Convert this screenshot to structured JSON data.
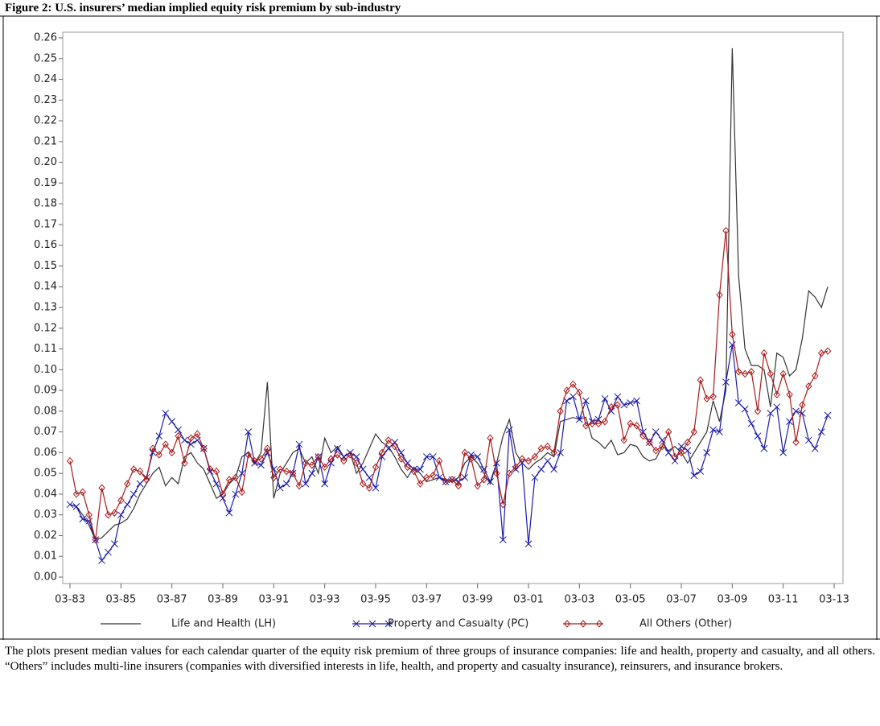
{
  "figure_title": "Figure 2: U.S. insurers’ median implied equity risk premium by sub-industry",
  "caption": "The plots present median values for each calendar quarter of the equity risk premium of three groups of insurance companies: life and health, property and casualty, and all others. “Others” includes multi-line insurers (companies with diversified interests in life, health, and property and casualty insurance), reinsurers, and insurance brokers.",
  "chart_data": {
    "type": "line",
    "legend": "bottom",
    "grid": false,
    "x": [
      "03-83",
      "06-83",
      "09-83",
      "12-83",
      "03-84",
      "06-84",
      "09-84",
      "12-84",
      "03-85",
      "06-85",
      "09-85",
      "12-85",
      "03-86",
      "06-86",
      "09-86",
      "12-86",
      "03-87",
      "06-87",
      "09-87",
      "12-87",
      "03-88",
      "06-88",
      "09-88",
      "12-88",
      "03-89",
      "06-89",
      "09-89",
      "12-89",
      "03-90",
      "06-90",
      "09-90",
      "12-90",
      "03-91",
      "06-91",
      "09-91",
      "12-91",
      "03-92",
      "06-92",
      "09-92",
      "12-92",
      "03-93",
      "06-93",
      "09-93",
      "12-93",
      "03-94",
      "06-94",
      "09-94",
      "12-94",
      "03-95",
      "06-95",
      "09-95",
      "12-95",
      "03-96",
      "06-96",
      "09-96",
      "12-96",
      "03-97",
      "06-97",
      "09-97",
      "12-97",
      "03-98",
      "06-98",
      "09-98",
      "12-98",
      "03-99",
      "06-99",
      "09-99",
      "12-99",
      "03-00",
      "06-00",
      "09-00",
      "12-00",
      "03-01",
      "06-01",
      "09-01",
      "12-01",
      "03-02",
      "06-02",
      "09-02",
      "12-02",
      "03-03",
      "06-03",
      "09-03",
      "12-03",
      "03-04",
      "06-04",
      "09-04",
      "12-04",
      "03-05",
      "06-05",
      "09-05",
      "12-05",
      "03-06",
      "06-06",
      "09-06",
      "12-06",
      "03-07",
      "06-07",
      "09-07",
      "12-07",
      "03-08",
      "06-08",
      "09-08",
      "12-08",
      "03-09",
      "06-09",
      "09-09",
      "12-09",
      "03-10",
      "06-10",
      "09-10",
      "12-10",
      "03-11",
      "06-11",
      "09-11",
      "12-11",
      "03-12",
      "06-12",
      "09-12",
      "12-12"
    ],
    "xticks": [
      "03-83",
      "03-85",
      "03-87",
      "03-89",
      "03-91",
      "03-93",
      "03-95",
      "03-97",
      "03-99",
      "03-01",
      "03-03",
      "03-05",
      "03-07",
      "03-09",
      "03-11",
      "03-13"
    ],
    "ylim": [
      0,
      0.26
    ],
    "yticks": [
      {
        "value": 0,
        "label": "0.00"
      },
      {
        "value": 0.01,
        "label": "0.01"
      },
      {
        "value": 0.02,
        "label": "0.02"
      },
      {
        "value": 0.03,
        "label": "0.03"
      },
      {
        "value": 0.04,
        "label": "0.04"
      },
      {
        "value": 0.05,
        "label": "0.05"
      },
      {
        "value": 0.06,
        "label": "0.06"
      },
      {
        "value": 0.07,
        "label": "0.07"
      },
      {
        "value": 0.08,
        "label": "0.08"
      },
      {
        "value": 0.09,
        "label": "0.09"
      },
      {
        "value": 0.1,
        "label": "0.10"
      },
      {
        "value": 0.11,
        "label": "0.11"
      },
      {
        "value": 0.12,
        "label": "0.12"
      },
      {
        "value": 0.13,
        "label": "0.13"
      },
      {
        "value": 0.14,
        "label": "0.14"
      },
      {
        "value": 0.15,
        "label": "0.15"
      },
      {
        "value": 0.16,
        "label": "0.16"
      },
      {
        "value": 0.17,
        "label": "0.17"
      },
      {
        "value": 0.18,
        "label": "0.18"
      },
      {
        "value": 0.19,
        "label": "0.19"
      },
      {
        "value": 0.2,
        "label": "0.20"
      },
      {
        "value": 0.21,
        "label": "0.21"
      },
      {
        "value": 0.22,
        "label": "0.22"
      },
      {
        "value": 0.23,
        "label": "0.23"
      },
      {
        "value": 0.24,
        "label": "0.24"
      },
      {
        "value": 0.25,
        "label": "0.25"
      },
      {
        "value": 0.26,
        "label": "0.26"
      }
    ],
    "series": [
      {
        "name": "Life and Health (LH)",
        "color": "#333333",
        "marker": "none",
        "values": [
          0.035,
          0.034,
          0.03,
          0.025,
          0.018,
          0.019,
          0.022,
          0.025,
          0.026,
          0.028,
          0.033,
          0.04,
          0.045,
          0.05,
          0.053,
          0.044,
          0.048,
          0.045,
          0.058,
          0.06,
          0.055,
          0.052,
          0.045,
          0.038,
          0.04,
          0.045,
          0.048,
          0.058,
          0.06,
          0.055,
          0.06,
          0.094,
          0.038,
          0.05,
          0.055,
          0.06,
          0.062,
          0.055,
          0.058,
          0.05,
          0.067,
          0.06,
          0.063,
          0.058,
          0.06,
          0.05,
          0.055,
          0.062,
          0.069,
          0.065,
          0.063,
          0.058,
          0.052,
          0.048,
          0.053,
          0.05,
          0.046,
          0.047,
          0.048,
          0.047,
          0.046,
          0.048,
          0.055,
          0.058,
          0.055,
          0.05,
          0.045,
          0.055,
          0.068,
          0.076,
          0.06,
          0.055,
          0.052,
          0.055,
          0.057,
          0.06,
          0.058,
          0.075,
          0.076,
          0.077,
          0.076,
          0.077,
          0.067,
          0.065,
          0.062,
          0.066,
          0.059,
          0.06,
          0.064,
          0.063,
          0.058,
          0.056,
          0.057,
          0.063,
          0.061,
          0.063,
          0.06,
          0.055,
          0.06,
          0.065,
          0.07,
          0.085,
          0.075,
          0.09,
          0.255,
          0.145,
          0.11,
          0.102,
          0.102,
          0.1,
          0.082,
          0.108,
          0.106,
          0.097,
          0.1,
          0.115,
          0.138,
          0.135,
          0.13,
          0.14
        ]
      },
      {
        "name": "Property and Casualty (PC)",
        "color": "#1a1aaa",
        "marker": "x",
        "values": [
          0.035,
          0.034,
          0.028,
          0.027,
          0.018,
          0.008,
          0.012,
          0.016,
          0.03,
          0.035,
          0.04,
          0.045,
          0.048,
          0.06,
          0.068,
          0.079,
          0.075,
          0.071,
          0.066,
          0.064,
          0.066,
          0.062,
          0.051,
          0.045,
          0.038,
          0.031,
          0.04,
          0.05,
          0.07,
          0.055,
          0.054,
          0.06,
          0.052,
          0.043,
          0.045,
          0.05,
          0.064,
          0.045,
          0.05,
          0.058,
          0.045,
          0.055,
          0.062,
          0.058,
          0.06,
          0.058,
          0.052,
          0.048,
          0.043,
          0.058,
          0.062,
          0.065,
          0.06,
          0.055,
          0.052,
          0.052,
          0.058,
          0.058,
          0.048,
          0.046,
          0.047,
          0.046,
          0.048,
          0.059,
          0.058,
          0.052,
          0.046,
          0.055,
          0.018,
          0.071,
          0.052,
          0.055,
          0.016,
          0.048,
          0.052,
          0.056,
          0.052,
          0.06,
          0.085,
          0.087,
          0.076,
          0.085,
          0.075,
          0.076,
          0.086,
          0.08,
          0.087,
          0.083,
          0.084,
          0.085,
          0.07,
          0.065,
          0.07,
          0.066,
          0.06,
          0.056,
          0.063,
          0.061,
          0.049,
          0.051,
          0.06,
          0.071,
          0.07,
          0.094,
          0.112,
          0.084,
          0.081,
          0.074,
          0.068,
          0.062,
          0.079,
          0.082,
          0.06,
          0.075,
          0.08,
          0.079,
          0.066,
          0.062,
          0.07,
          0.078
        ]
      },
      {
        "name": "All Others (Other)",
        "color": "#aa1a1a",
        "marker": "diamond",
        "values": [
          0.056,
          0.04,
          0.041,
          0.03,
          0.018,
          0.043,
          0.03,
          0.031,
          0.037,
          0.045,
          0.052,
          0.051,
          0.047,
          0.062,
          0.059,
          0.064,
          0.06,
          0.068,
          0.055,
          0.067,
          0.069,
          0.062,
          0.052,
          0.051,
          0.04,
          0.047,
          0.048,
          0.041,
          0.059,
          0.056,
          0.057,
          0.062,
          0.048,
          0.052,
          0.051,
          0.05,
          0.044,
          0.055,
          0.054,
          0.058,
          0.053,
          0.057,
          0.059,
          0.056,
          0.059,
          0.055,
          0.045,
          0.043,
          0.053,
          0.06,
          0.066,
          0.063,
          0.057,
          0.053,
          0.051,
          0.045,
          0.048,
          0.049,
          0.056,
          0.046,
          0.047,
          0.044,
          0.06,
          0.057,
          0.044,
          0.047,
          0.067,
          0.05,
          0.035,
          0.05,
          0.053,
          0.057,
          0.056,
          0.058,
          0.062,
          0.063,
          0.06,
          0.08,
          0.09,
          0.093,
          0.089,
          0.073,
          0.074,
          0.074,
          0.075,
          0.082,
          0.083,
          0.066,
          0.074,
          0.073,
          0.068,
          0.065,
          0.061,
          0.063,
          0.07,
          0.058,
          0.06,
          0.065,
          0.07,
          0.095,
          0.086,
          0.087,
          0.136,
          0.167,
          0.117,
          0.099,
          0.098,
          0.099,
          0.08,
          0.108,
          0.098,
          0.088,
          0.098,
          0.088,
          0.065,
          0.083,
          0.092,
          0.097,
          0.108,
          0.109
        ]
      }
    ]
  }
}
